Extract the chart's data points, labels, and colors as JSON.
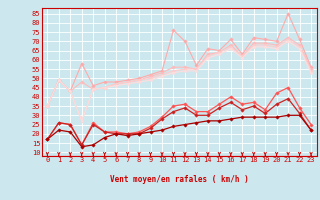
{
  "bg_color": "#cce8ee",
  "grid_color": "#ffffff",
  "xlabel": "Vent moyen/en rafales ( km/h )",
  "x": [
    0,
    1,
    2,
    3,
    4,
    5,
    6,
    7,
    8,
    9,
    10,
    11,
    12,
    13,
    14,
    15,
    16,
    17,
    18,
    19,
    20,
    21,
    22,
    23
  ],
  "series": [
    {
      "name": "rafales_max",
      "color": "#ffaaaa",
      "lw": 0.8,
      "marker": "D",
      "ms": 1.8,
      "y": [
        35,
        49,
        43,
        58,
        46,
        48,
        48,
        49,
        50,
        52,
        54,
        76,
        70,
        57,
        66,
        65,
        71,
        63,
        72,
        71,
        70,
        85,
        71,
        56
      ]
    },
    {
      "name": "rafales_moy_high",
      "color": "#ffbbbb",
      "lw": 0.8,
      "marker": "D",
      "ms": 1.8,
      "y": [
        35,
        49,
        43,
        48,
        44,
        45,
        47,
        48,
        49,
        51,
        53,
        56,
        56,
        55,
        63,
        64,
        68,
        62,
        69,
        69,
        68,
        72,
        68,
        55
      ]
    },
    {
      "name": "vent_moyen_high",
      "color": "#ffcccc",
      "lw": 0.8,
      "marker": "D",
      "ms": 1.6,
      "y": [
        35,
        49,
        43,
        27,
        44,
        45,
        47,
        48,
        49,
        50,
        52,
        54,
        55,
        55,
        62,
        64,
        67,
        62,
        68,
        68,
        67,
        71,
        67,
        54
      ]
    },
    {
      "name": "vent_moyen_low",
      "color": "#ffdddd",
      "lw": 0.8,
      "marker": "D",
      "ms": 1.6,
      "y": [
        35,
        49,
        43,
        27,
        44,
        45,
        46,
        47,
        48,
        49,
        51,
        53,
        54,
        54,
        61,
        63,
        66,
        61,
        67,
        67,
        66,
        70,
        66,
        53
      ]
    },
    {
      "name": "rafales_daily",
      "color": "#ff5555",
      "lw": 0.9,
      "marker": "D",
      "ms": 1.8,
      "y": [
        17,
        26,
        25,
        14,
        26,
        21,
        21,
        20,
        21,
        24,
        29,
        35,
        36,
        32,
        32,
        36,
        40,
        36,
        37,
        33,
        42,
        45,
        34,
        25
      ]
    },
    {
      "name": "vent_moyen_daily",
      "color": "#cc2222",
      "lw": 0.9,
      "marker": "D",
      "ms": 1.8,
      "y": [
        17,
        26,
        25,
        14,
        25,
        21,
        20,
        20,
        20,
        23,
        28,
        32,
        34,
        30,
        30,
        34,
        37,
        33,
        35,
        31,
        36,
        39,
        31,
        22
      ]
    },
    {
      "name": "vent_min",
      "color": "#aa0000",
      "lw": 0.9,
      "marker": "D",
      "ms": 1.8,
      "y": [
        17,
        22,
        21,
        13,
        14,
        18,
        20,
        19,
        20,
        21,
        22,
        24,
        25,
        26,
        27,
        27,
        28,
        29,
        29,
        29,
        29,
        30,
        30,
        22
      ]
    }
  ],
  "ylim": [
    8,
    88
  ],
  "yticks": [
    10,
    15,
    20,
    25,
    30,
    35,
    40,
    45,
    50,
    55,
    60,
    65,
    70,
    75,
    80,
    85
  ],
  "xlim": [
    -0.5,
    23.5
  ],
  "tick_color": "#cc0000",
  "spine_color": "#cc0000",
  "arrow_color": "#cc0000",
  "label_fontsize": 5.0,
  "xlabel_fontsize": 5.5
}
